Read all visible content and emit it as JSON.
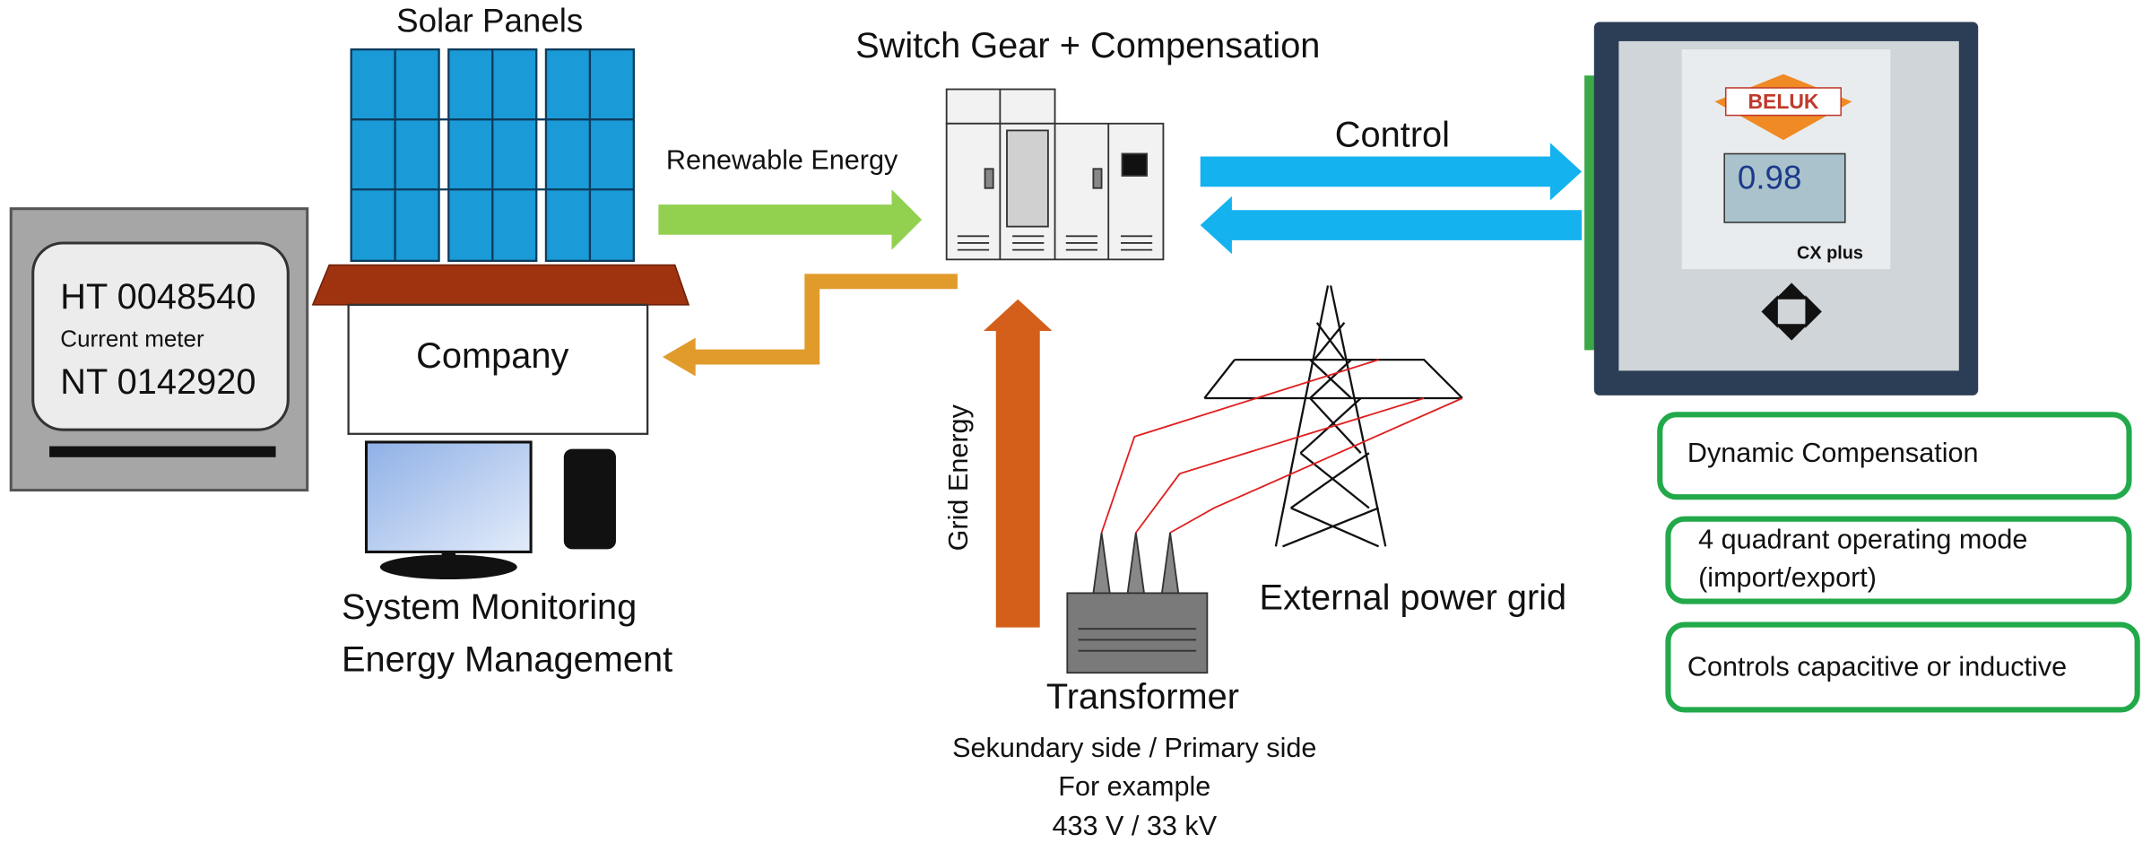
{
  "solar_panels": {
    "label": "Solar Panels"
  },
  "switchgear": {
    "label": "Switch Gear + Compensation"
  },
  "flows": {
    "renewable": "Renewable Energy",
    "control": "Control",
    "grid": "Grid Energy"
  },
  "meter": {
    "line1": "HT 0048540",
    "caption": "Current meter",
    "line2": "NT 0142920"
  },
  "company": {
    "label": "Company"
  },
  "monitoring": {
    "lines": [
      "System Monitoring",
      "Energy Management"
    ]
  },
  "power_grid": {
    "label": "External power grid"
  },
  "transformer": {
    "title": "Transformer",
    "lines": [
      "Sekundary side / Primary side",
      "For example",
      "433 V / 33 kV"
    ]
  },
  "controller": {
    "brand": "BELUK",
    "display": "0.98",
    "model": "CX plus"
  },
  "features": [
    {
      "lines": [
        "Dynamic Compensation"
      ]
    },
    {
      "lines": [
        "4 quadrant operating mode",
        "(import/export)"
      ]
    },
    {
      "lines": [
        "Controls capacitive or inductive"
      ]
    }
  ]
}
